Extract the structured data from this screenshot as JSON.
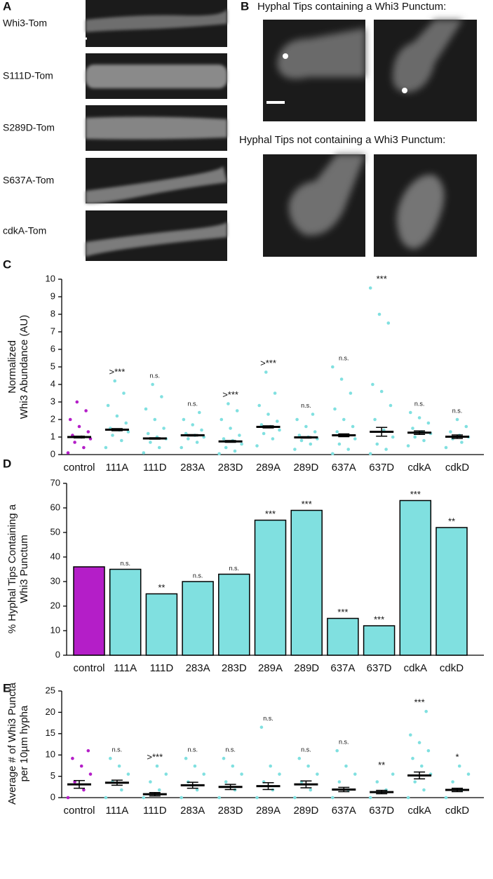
{
  "panel_a": {
    "letter": "A",
    "labels": [
      "Whi3-Tom",
      "S111D-Tom",
      "S289D-Tom",
      "S637A-Tom",
      "cdkA-Tom"
    ]
  },
  "panel_b": {
    "letter": "B",
    "titles": [
      "Hyphal Tips containing a Whi3 Punctum:",
      "Hyphal Tips not containing a Whi3 Punctum:"
    ]
  },
  "chart_data": [
    {
      "type": "dot",
      "panel": "C",
      "ylabel": [
        "Normalized",
        "Whi3 Abundance (AU)"
      ],
      "categories": [
        "control",
        "111A",
        "111D",
        "283A",
        "283D",
        "289A",
        "289D",
        "637A",
        "637D",
        "cdkA",
        "cdkD"
      ],
      "colors": [
        "#b41ec8",
        "#80e0e0",
        "#80e0e0",
        "#80e0e0",
        "#80e0e0",
        "#80e0e0",
        "#80e0e0",
        "#80e0e0",
        "#80e0e0",
        "#80e0e0",
        "#80e0e0"
      ],
      "values": [
        1.0,
        1.42,
        0.92,
        1.1,
        0.75,
        1.58,
        0.98,
        1.1,
        1.3,
        1.25,
        1.02
      ],
      "errors": [
        0.05,
        0.06,
        0.04,
        0.04,
        0.05,
        0.06,
        0.04,
        0.08,
        0.25,
        0.1,
        0.1
      ],
      "points": [
        [
          0.1,
          0.4,
          0.7,
          0.9,
          1.0,
          1.1,
          1.3,
          1.6,
          2.0,
          2.5,
          3.0
        ],
        [
          0.4,
          0.8,
          1.1,
          1.3,
          1.4,
          1.5,
          1.8,
          2.2,
          2.8,
          3.5,
          4.2
        ],
        [
          0.1,
          0.4,
          0.7,
          0.9,
          1.0,
          1.2,
          1.5,
          2.0,
          2.6,
          3.3,
          4.0
        ],
        [
          0.4,
          0.7,
          0.9,
          1.0,
          1.1,
          1.2,
          1.4,
          1.7,
          2.0,
          2.4
        ],
        [
          0.05,
          0.2,
          0.4,
          0.6,
          0.8,
          0.9,
          1.1,
          1.5,
          2.0,
          2.5,
          2.9
        ],
        [
          0.5,
          0.9,
          1.2,
          1.4,
          1.6,
          1.7,
          1.9,
          2.3,
          2.8,
          3.5,
          4.7
        ],
        [
          0.3,
          0.6,
          0.8,
          0.9,
          1.0,
          1.1,
          1.3,
          1.6,
          2.0,
          2.3
        ],
        [
          0.05,
          0.3,
          0.6,
          0.9,
          1.1,
          1.3,
          1.6,
          2.0,
          2.6,
          3.5,
          4.3,
          5.0
        ],
        [
          0.05,
          0.3,
          0.6,
          1.0,
          1.4,
          2.0,
          2.8,
          3.6,
          4.0,
          7.5,
          8.0,
          9.5
        ],
        [
          0.5,
          0.8,
          1.0,
          1.2,
          1.3,
          1.5,
          1.8,
          2.1,
          2.4
        ],
        [
          0.4,
          0.7,
          0.9,
          1.0,
          1.1,
          1.3,
          1.6,
          2.0
        ]
      ],
      "annotations": [
        null,
        ">***",
        "n.s.",
        "n.s.",
        ">***",
        ">***",
        "n.s.",
        "n.s.",
        "***",
        "n.s.",
        "n.s."
      ],
      "ylim": [
        0,
        10
      ],
      "yticks": [
        0,
        1,
        2,
        3,
        4,
        5,
        6,
        7,
        8,
        9,
        10
      ]
    },
    {
      "type": "bar",
      "panel": "D",
      "ylabel": [
        "% Hyphal Tips Containing a",
        "Whi3 Punctum"
      ],
      "categories": [
        "control",
        "111A",
        "111D",
        "283A",
        "283D",
        "289A",
        "289D",
        "637A",
        "637D",
        "cdkA",
        "cdkD"
      ],
      "colors": [
        "#b41ec8",
        "#80e0e0",
        "#80e0e0",
        "#80e0e0",
        "#80e0e0",
        "#80e0e0",
        "#80e0e0",
        "#80e0e0",
        "#80e0e0",
        "#80e0e0",
        "#80e0e0"
      ],
      "values": [
        36,
        35,
        25,
        30,
        33,
        55,
        59,
        15,
        12,
        63,
        52
      ],
      "annotations": [
        null,
        "n.s.",
        "**",
        "n.s.",
        "n.s.",
        "***",
        "***",
        "***",
        "***",
        "***",
        "**"
      ],
      "ylim": [
        0,
        70
      ],
      "yticks": [
        0,
        10,
        20,
        30,
        40,
        50,
        60,
        70
      ]
    },
    {
      "type": "dot",
      "panel": "E",
      "ylabel": [
        "Average # of Whi3 Puncta",
        "per 10µm hypha"
      ],
      "categories": [
        "control",
        "111A",
        "111D",
        "283A",
        "283D",
        "289A",
        "289D",
        "637A",
        "637D",
        "cdkA",
        "cdkD"
      ],
      "colors": [
        "#b41ec8",
        "#80e0e0",
        "#80e0e0",
        "#80e0e0",
        "#80e0e0",
        "#80e0e0",
        "#80e0e0",
        "#80e0e0",
        "#80e0e0",
        "#80e0e0",
        "#80e0e0"
      ],
      "values": [
        3.1,
        3.5,
        0.8,
        2.9,
        2.5,
        2.7,
        3.1,
        1.9,
        1.3,
        5.2,
        1.8
      ],
      "errors": [
        0.9,
        0.6,
        0.4,
        0.7,
        0.6,
        0.8,
        0.8,
        0.5,
        0.4,
        0.8,
        0.4
      ],
      "points": [
        [
          0,
          1.8,
          3.7,
          5.5,
          7.4,
          9.2,
          11
        ],
        [
          0,
          1.8,
          3.7,
          5.5,
          7.4,
          9.2
        ],
        [
          0,
          1.8,
          3.7,
          5.5,
          7.4
        ],
        [
          0,
          1.8,
          3.7,
          5.5,
          7.4,
          9.2
        ],
        [
          0,
          1.8,
          3.7,
          5.5,
          7.4,
          9.2
        ],
        [
          0,
          1.8,
          3.7,
          5.5,
          7.4,
          16.5
        ],
        [
          0,
          1.8,
          3.7,
          5.5,
          7.4,
          9.2
        ],
        [
          0,
          1.8,
          3.7,
          5.5,
          7.4,
          11
        ],
        [
          0,
          1.8,
          3.7,
          5.5
        ],
        [
          0,
          1.8,
          3.7,
          5.5,
          7.4,
          9.2,
          11,
          12.9,
          14.7,
          20.2
        ],
        [
          0,
          1.8,
          3.7,
          5.5,
          7.4
        ]
      ],
      "annotations": [
        null,
        "n.s.",
        ">***",
        "n.s.",
        "n.s.",
        "n.s.",
        "n.s.",
        "n.s.",
        "**",
        "***",
        "*"
      ],
      "ylim": [
        0,
        25
      ],
      "yticks": [
        0,
        5,
        10,
        15,
        20,
        25
      ]
    }
  ]
}
